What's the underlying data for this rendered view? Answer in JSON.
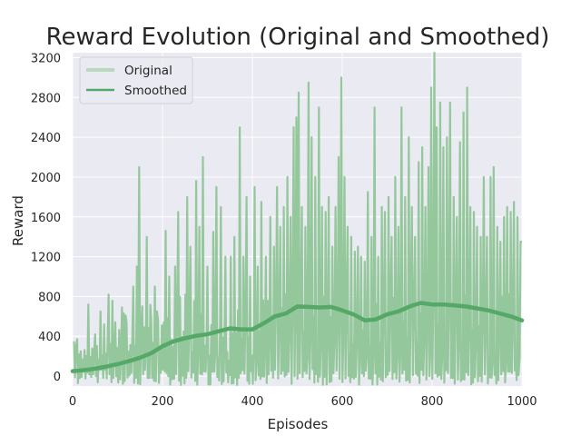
{
  "chart_data": {
    "type": "line",
    "title": "Reward Evolution (Original and Smoothed)",
    "xlabel": "Episodes",
    "ylabel": "Reward",
    "xlim": [
      0,
      1000
    ],
    "ylim": [
      -100,
      3250
    ],
    "xticks": [
      0,
      200,
      400,
      600,
      800,
      1000
    ],
    "yticks": [
      0,
      400,
      800,
      1200,
      1600,
      2000,
      2400,
      2800,
      3200
    ],
    "grid": true,
    "legend_position": "top-left",
    "colors": {
      "background": "#eaeaf2",
      "grid": "#ffffff",
      "original": "#8fc596",
      "smoothed": "#55a868",
      "legend_original": "#b9d9bd"
    },
    "series": [
      {
        "name": "Original",
        "style": "noisy",
        "peaks": [
          {
            "x": 3,
            "y": 350
          },
          {
            "x": 10,
            "y": 370
          },
          {
            "x": 18,
            "y": 250
          },
          {
            "x": 35,
            "y": 720
          },
          {
            "x": 50,
            "y": 420
          },
          {
            "x": 62,
            "y": 650
          },
          {
            "x": 70,
            "y": 520
          },
          {
            "x": 80,
            "y": 820
          },
          {
            "x": 95,
            "y": 540
          },
          {
            "x": 110,
            "y": 690
          },
          {
            "x": 120,
            "y": 540
          },
          {
            "x": 135,
            "y": 900
          },
          {
            "x": 143,
            "y": 1100
          },
          {
            "x": 148,
            "y": 2100
          },
          {
            "x": 155,
            "y": 700
          },
          {
            "x": 165,
            "y": 1400
          },
          {
            "x": 175,
            "y": 560
          },
          {
            "x": 183,
            "y": 900
          },
          {
            "x": 190,
            "y": 560
          },
          {
            "x": 207,
            "y": 1460
          },
          {
            "x": 215,
            "y": 1000
          },
          {
            "x": 228,
            "y": 1100
          },
          {
            "x": 235,
            "y": 1650
          },
          {
            "x": 255,
            "y": 1800
          },
          {
            "x": 262,
            "y": 1300
          },
          {
            "x": 275,
            "y": 1960
          },
          {
            "x": 282,
            "y": 1500
          },
          {
            "x": 290,
            "y": 2200
          },
          {
            "x": 300,
            "y": 1100
          },
          {
            "x": 313,
            "y": 1450
          },
          {
            "x": 320,
            "y": 1900
          },
          {
            "x": 330,
            "y": 1700
          },
          {
            "x": 340,
            "y": 1200
          },
          {
            "x": 352,
            "y": 1200
          },
          {
            "x": 360,
            "y": 1400
          },
          {
            "x": 372,
            "y": 2500
          },
          {
            "x": 380,
            "y": 1200
          },
          {
            "x": 387,
            "y": 1800
          },
          {
            "x": 395,
            "y": 1000
          },
          {
            "x": 405,
            "y": 1900
          },
          {
            "x": 412,
            "y": 1100
          },
          {
            "x": 420,
            "y": 1750
          },
          {
            "x": 430,
            "y": 1200
          },
          {
            "x": 440,
            "y": 1600
          },
          {
            "x": 448,
            "y": 1300
          },
          {
            "x": 455,
            "y": 1900
          },
          {
            "x": 462,
            "y": 1500
          },
          {
            "x": 470,
            "y": 1700
          },
          {
            "x": 478,
            "y": 2000
          },
          {
            "x": 485,
            "y": 1600
          },
          {
            "x": 492,
            "y": 2500
          },
          {
            "x": 498,
            "y": 2600
          },
          {
            "x": 503,
            "y": 2850
          },
          {
            "x": 510,
            "y": 1700
          },
          {
            "x": 518,
            "y": 1500
          },
          {
            "x": 525,
            "y": 2950
          },
          {
            "x": 532,
            "y": 2400
          },
          {
            "x": 540,
            "y": 2000
          },
          {
            "x": 548,
            "y": 2700
          },
          {
            "x": 555,
            "y": 1700
          },
          {
            "x": 563,
            "y": 1650
          },
          {
            "x": 570,
            "y": 1800
          },
          {
            "x": 578,
            "y": 1300
          },
          {
            "x": 585,
            "y": 1700
          },
          {
            "x": 592,
            "y": 2200
          },
          {
            "x": 598,
            "y": 3000
          },
          {
            "x": 605,
            "y": 2000
          },
          {
            "x": 612,
            "y": 1500
          },
          {
            "x": 620,
            "y": 1400
          },
          {
            "x": 628,
            "y": 1250
          },
          {
            "x": 635,
            "y": 1300
          },
          {
            "x": 642,
            "y": 1200
          },
          {
            "x": 650,
            "y": 1150
          },
          {
            "x": 657,
            "y": 1850
          },
          {
            "x": 665,
            "y": 1400
          },
          {
            "x": 672,
            "y": 2700
          },
          {
            "x": 680,
            "y": 1200
          },
          {
            "x": 688,
            "y": 1700
          },
          {
            "x": 695,
            "y": 1650
          },
          {
            "x": 703,
            "y": 1800
          },
          {
            "x": 710,
            "y": 1400
          },
          {
            "x": 718,
            "y": 2000
          },
          {
            "x": 725,
            "y": 1500
          },
          {
            "x": 732,
            "y": 2700
          },
          {
            "x": 740,
            "y": 1800
          },
          {
            "x": 748,
            "y": 2400
          },
          {
            "x": 755,
            "y": 1700
          },
          {
            "x": 762,
            "y": 1400
          },
          {
            "x": 770,
            "y": 2150
          },
          {
            "x": 778,
            "y": 2300
          },
          {
            "x": 785,
            "y": 1700
          },
          {
            "x": 792,
            "y": 2100
          },
          {
            "x": 798,
            "y": 2900
          },
          {
            "x": 805,
            "y": 3250
          },
          {
            "x": 810,
            "y": 2500
          },
          {
            "x": 818,
            "y": 2750
          },
          {
            "x": 825,
            "y": 2300
          },
          {
            "x": 833,
            "y": 2400
          },
          {
            "x": 840,
            "y": 2750
          },
          {
            "x": 848,
            "y": 1800
          },
          {
            "x": 855,
            "y": 1600
          },
          {
            "x": 862,
            "y": 2350
          },
          {
            "x": 870,
            "y": 2650
          },
          {
            "x": 878,
            "y": 2900
          },
          {
            "x": 885,
            "y": 1700
          },
          {
            "x": 893,
            "y": 1650
          },
          {
            "x": 900,
            "y": 1500
          },
          {
            "x": 908,
            "y": 1400
          },
          {
            "x": 915,
            "y": 2000
          },
          {
            "x": 922,
            "y": 1400
          },
          {
            "x": 930,
            "y": 2000
          },
          {
            "x": 937,
            "y": 2100
          },
          {
            "x": 945,
            "y": 1500
          },
          {
            "x": 952,
            "y": 1350
          },
          {
            "x": 960,
            "y": 1600
          },
          {
            "x": 967,
            "y": 1700
          },
          {
            "x": 975,
            "y": 1650
          },
          {
            "x": 982,
            "y": 1750
          },
          {
            "x": 990,
            "y": 1600
          },
          {
            "x": 997,
            "y": 1350
          }
        ]
      },
      {
        "name": "Smoothed",
        "x": [
          0,
          25,
          50,
          75,
          100,
          125,
          150,
          175,
          200,
          225,
          250,
          275,
          300,
          325,
          350,
          375,
          400,
          425,
          450,
          475,
          500,
          525,
          550,
          575,
          600,
          625,
          650,
          675,
          700,
          725,
          750,
          775,
          800,
          825,
          850,
          875,
          900,
          925,
          950,
          975,
          1000
        ],
        "y": [
          50,
          60,
          75,
          95,
          120,
          150,
          185,
          230,
          300,
          350,
          380,
          405,
          420,
          450,
          480,
          470,
          470,
          530,
          600,
          630,
          700,
          695,
          690,
          695,
          660,
          620,
          560,
          570,
          620,
          650,
          700,
          735,
          720,
          720,
          710,
          700,
          680,
          660,
          630,
          600,
          560
        ]
      }
    ]
  }
}
